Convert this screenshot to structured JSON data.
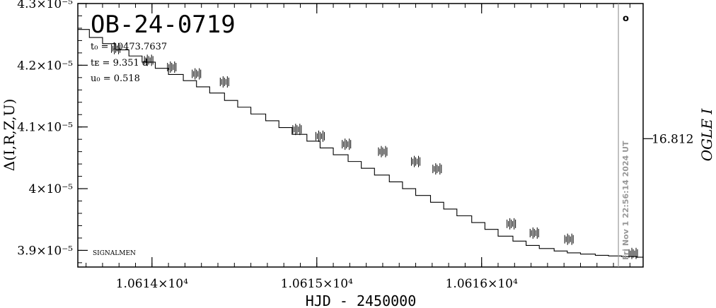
{
  "chart_data": {
    "type": "line",
    "title": "OB-24-0719",
    "xlabel": "HJD - 2450000",
    "ylabel": "Δ(I,R,Z,U)",
    "ylabel_right": "OGLE I",
    "xlim": [
      10613.55,
      10616.98
    ],
    "ylim": [
      3.873e-05,
      4.3e-05
    ],
    "x_ticks": [
      {
        "value": 10614,
        "label": "1.0614×10⁴"
      },
      {
        "value": 10615,
        "label": "1.0615×10⁴"
      },
      {
        "value": 10616,
        "label": "1.0616×10⁴"
      }
    ],
    "y_ticks": [
      {
        "value": 3.9e-05,
        "label": "3.9×10⁻⁵"
      },
      {
        "value": 4e-05,
        "label": "4×10⁻⁵"
      },
      {
        "value": 4.1e-05,
        "label": "4.1×10⁻⁵"
      },
      {
        "value": 4.2e-05,
        "label": "4.2×10⁻⁵"
      },
      {
        "value": 4.3e-05,
        "label": "4.3×10⁻⁵"
      }
    ],
    "right_tick": {
      "value": 4.081e-05,
      "label": "16.812"
    },
    "params": {
      "t0_label": "t₀ = 10473.7637",
      "tE_label": "tᴇ = 9.351 d",
      "u0_label": "u₀ = 0.518"
    },
    "footnote": "SIGNALMEN",
    "corner_mark": "o",
    "time_marker": {
      "x": 10616.83,
      "label": "Fri Nov  1 22:56:14 2024 UT",
      "color": "#999999"
    },
    "series": [
      {
        "color": "#000000",
        "x": [
          10613.55,
          10613.62,
          10613.7,
          10613.78,
          10613.86,
          10613.94,
          10614.02,
          10614.1,
          10614.19,
          10614.27,
          10614.35,
          10614.44,
          10614.52,
          10614.6,
          10614.69,
          10614.77,
          10614.85,
          10614.94,
          10615.02,
          10615.1,
          10615.19,
          10615.27,
          10615.35,
          10615.44,
          10615.52,
          10615.6,
          10615.69,
          10615.77,
          10615.85,
          10615.94,
          10616.02,
          10616.1,
          10616.19,
          10616.27,
          10616.35,
          10616.44,
          10616.52,
          10616.6,
          10616.69,
          10616.77,
          10616.85,
          10616.94,
          10616.98
        ],
        "y": [
          4.258e-05,
          4.245e-05,
          4.235e-05,
          4.225e-05,
          4.215e-05,
          4.205e-05,
          4.195e-05,
          4.185e-05,
          4.175e-05,
          4.165e-05,
          4.155e-05,
          4.143e-05,
          4.132e-05,
          4.121e-05,
          4.11e-05,
          4.099e-05,
          4.088e-05,
          4.077e-05,
          4.066e-05,
          4.055e-05,
          4.044e-05,
          4.033e-05,
          4.022e-05,
          4.011e-05,
          4e-05,
          3.989e-05,
          3.978e-05,
          3.967e-05,
          3.956e-05,
          3.945e-05,
          3.934e-05,
          3.923e-05,
          3.915e-05,
          3.908e-05,
          3.903e-05,
          3.899e-05,
          3.896e-05,
          3.894e-05,
          3.892e-05,
          3.891e-05,
          3.89e-05,
          3.889e-05,
          3.888e-05
        ]
      }
    ],
    "data_clusters": [
      {
        "x": 10613.78,
        "y": 4.227e-05
      },
      {
        "x": 10613.98,
        "y": 4.208e-05
      },
      {
        "x": 10614.12,
        "y": 4.197e-05
      },
      {
        "x": 10614.27,
        "y": 4.186e-05
      },
      {
        "x": 10614.44,
        "y": 4.173e-05
      },
      {
        "x": 10614.88,
        "y": 4.096e-05
      },
      {
        "x": 10615.02,
        "y": 4.085e-05
      },
      {
        "x": 10615.18,
        "y": 4.072e-05
      },
      {
        "x": 10615.4,
        "y": 4.06e-05
      },
      {
        "x": 10615.6,
        "y": 4.044e-05
      },
      {
        "x": 10615.73,
        "y": 4.032e-05
      },
      {
        "x": 10616.18,
        "y": 3.943e-05
      },
      {
        "x": 10616.32,
        "y": 3.928e-05
      },
      {
        "x": 10616.53,
        "y": 3.918e-05
      },
      {
        "x": 10616.92,
        "y": 3.895e-05
      }
    ]
  }
}
